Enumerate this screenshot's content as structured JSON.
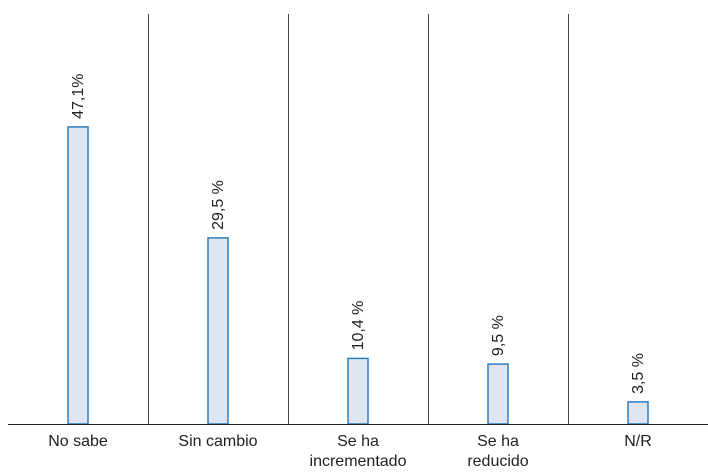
{
  "chart_data": {
    "type": "bar",
    "categories": [
      "No sabe",
      "Sin cambio",
      "Se ha\nincrementado",
      "Se ha\nreducido",
      "N/R"
    ],
    "values": [
      47.1,
      29.5,
      10.4,
      9.5,
      3.5
    ],
    "data_labels": [
      "47,1%",
      "29,5 %",
      "10,4 %",
      "9,5 %",
      "3,5 %"
    ],
    "ylim": [
      0,
      65
    ],
    "title": "",
    "xlabel": "",
    "ylabel": "",
    "grid": false,
    "legend": "none",
    "colors": {
      "bar_fill": "#dfe6f2",
      "bar_stroke": "#2d7fbf",
      "separator": "#444444",
      "axis": "#222222"
    }
  }
}
